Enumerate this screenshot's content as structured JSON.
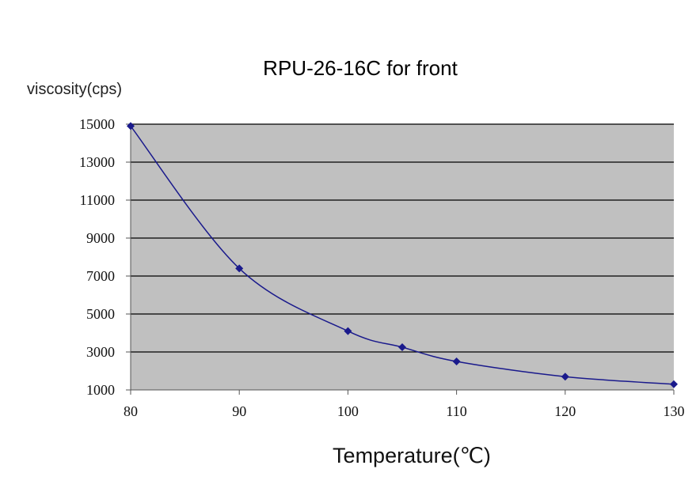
{
  "chart_data": {
    "type": "line",
    "title": "RPU-26-16C for front",
    "xlabel": "Temperature(℃)",
    "ylabel": "viscosity(cps)",
    "x": [
      80,
      90,
      100,
      105,
      110,
      120,
      130
    ],
    "series": [
      {
        "values": [
          14900,
          7400,
          4100,
          3250,
          2500,
          1700,
          1300
        ]
      }
    ],
    "xlim": [
      80,
      130
    ],
    "ylim": [
      1000,
      15000
    ],
    "xticks": [
      "80",
      "90",
      "100",
      "110",
      "120",
      "130"
    ],
    "yticks": [
      "1000",
      "3000",
      "5000",
      "7000",
      "9000",
      "11000",
      "13000",
      "15000"
    ],
    "grid": true,
    "legend": "none",
    "colors": {
      "series": "#1a1a8c",
      "plot_background": "#c0c0c0",
      "gridline": "#000000"
    }
  }
}
